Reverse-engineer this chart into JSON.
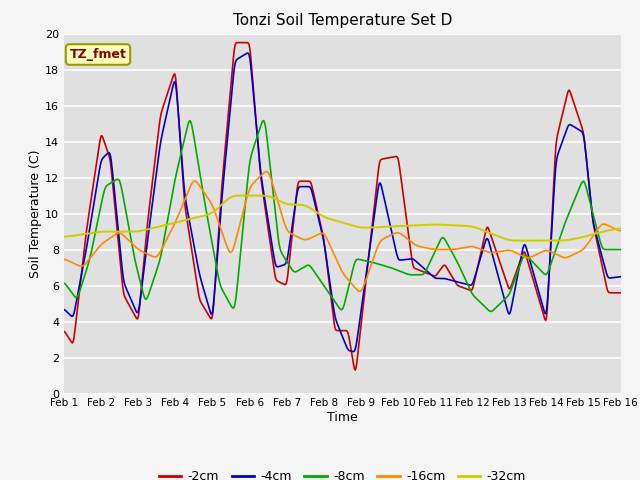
{
  "title": "Tonzi Soil Temperature Set D",
  "xlabel": "Time",
  "ylabel": "Soil Temperature (C)",
  "ylim": [
    0,
    20
  ],
  "xlim": [
    0,
    15
  ],
  "annotation_text": "TZ_fmet",
  "plot_bg_color": "#e0e0e0",
  "fig_bg_color": "#f5f5f5",
  "grid_color": "#cccccc",
  "series": {
    "-2cm": {
      "color": "#cc0000",
      "lw": 1.2
    },
    "-4cm": {
      "color": "#0000cc",
      "lw": 1.2
    },
    "-8cm": {
      "color": "#00aa00",
      "lw": 1.2
    },
    "-16cm": {
      "color": "#ff8800",
      "lw": 1.2
    },
    "-32cm": {
      "color": "#cccc00",
      "lw": 1.4
    }
  },
  "xtick_labels": [
    "Feb 1",
    "Feb 2",
    "Feb 3",
    "Feb 4",
    "Feb 5",
    "Feb 6",
    "Feb 7",
    "Feb 8",
    "Feb 9",
    "Feb 10",
    "Feb 11",
    "Feb 12",
    "Feb 13",
    "Feb 14",
    "Feb 15",
    "Feb 16"
  ],
  "ytick_labels": [
    "0",
    "2",
    "4",
    "6",
    "8",
    "10",
    "12",
    "14",
    "16",
    "18",
    "20"
  ],
  "kt_2": [
    0,
    0.25,
    0.6,
    1.0,
    1.25,
    1.6,
    2.0,
    2.25,
    2.6,
    3.0,
    3.25,
    3.65,
    4.0,
    4.25,
    4.6,
    5.0,
    5.3,
    5.7,
    6.0,
    6.3,
    6.65,
    7.0,
    7.3,
    7.65,
    7.85,
    8.5,
    9.0,
    9.4,
    10.0,
    10.25,
    10.6,
    11.0,
    11.4,
    12.0,
    12.4,
    13.0,
    13.25,
    13.6,
    14.0,
    14.25,
    14.65,
    15.0
  ],
  "kv_2": [
    3.5,
    2.7,
    9.0,
    14.5,
    13.0,
    5.5,
    4.0,
    9.5,
    15.5,
    18.0,
    10.5,
    5.2,
    4.0,
    11.5,
    19.5,
    19.5,
    12.0,
    6.3,
    6.0,
    11.8,
    11.8,
    8.6,
    3.5,
    3.5,
    1.0,
    13.0,
    13.2,
    7.0,
    6.5,
    7.2,
    6.0,
    5.7,
    9.4,
    5.7,
    8.0,
    3.8,
    14.0,
    17.0,
    14.5,
    9.5,
    5.6,
    5.6
  ],
  "kt_4": [
    0,
    0.25,
    0.6,
    1.0,
    1.25,
    1.6,
    2.0,
    2.25,
    2.6,
    3.0,
    3.25,
    3.65,
    4.0,
    4.25,
    4.6,
    5.0,
    5.3,
    5.7,
    6.0,
    6.3,
    6.65,
    7.0,
    7.3,
    7.65,
    7.85,
    8.5,
    9.0,
    9.4,
    10.0,
    10.25,
    10.6,
    11.0,
    11.4,
    12.0,
    12.4,
    13.0,
    13.25,
    13.6,
    14.0,
    14.25,
    14.65,
    15.0
  ],
  "kv_4": [
    4.7,
    4.2,
    8.0,
    13.0,
    13.5,
    6.2,
    4.3,
    8.5,
    14.0,
    17.7,
    11.0,
    6.6,
    4.1,
    10.8,
    18.5,
    19.0,
    12.2,
    7.0,
    7.2,
    11.5,
    11.5,
    8.5,
    4.2,
    2.4,
    2.3,
    12.0,
    7.4,
    7.5,
    6.4,
    6.4,
    6.2,
    6.0,
    8.8,
    4.2,
    8.5,
    4.1,
    13.0,
    15.0,
    14.5,
    9.5,
    6.4,
    6.5
  ],
  "kt_8": [
    0,
    0.35,
    0.7,
    1.1,
    1.5,
    1.9,
    2.2,
    2.6,
    3.0,
    3.4,
    3.8,
    4.2,
    4.6,
    5.0,
    5.4,
    5.8,
    6.2,
    6.6,
    7.0,
    7.5,
    7.85,
    8.3,
    8.8,
    9.3,
    9.7,
    10.2,
    10.6,
    11.0,
    11.5,
    12.0,
    12.4,
    13.0,
    13.5,
    14.0,
    14.5,
    15.0
  ],
  "kv_8": [
    6.2,
    5.2,
    7.5,
    11.5,
    12.0,
    7.5,
    5.0,
    7.5,
    12.0,
    15.5,
    10.5,
    6.0,
    4.5,
    13.0,
    15.5,
    8.0,
    6.7,
    7.2,
    6.0,
    4.5,
    7.5,
    7.3,
    7.0,
    6.6,
    6.6,
    8.8,
    7.3,
    5.5,
    4.5,
    5.5,
    7.8,
    6.5,
    9.5,
    12.0,
    8.0,
    8.0
  ],
  "kt_16": [
    0,
    0.5,
    1.0,
    1.5,
    2.0,
    2.5,
    3.0,
    3.5,
    4.0,
    4.5,
    5.0,
    5.5,
    6.0,
    6.5,
    7.0,
    7.5,
    8.0,
    8.5,
    9.0,
    9.5,
    10.0,
    10.5,
    11.0,
    11.5,
    12.0,
    12.5,
    13.0,
    13.5,
    14.0,
    14.5,
    15.0
  ],
  "kv_16": [
    7.5,
    7.0,
    8.3,
    9.0,
    8.0,
    7.5,
    9.5,
    12.0,
    10.5,
    7.5,
    11.5,
    12.5,
    9.0,
    8.5,
    9.0,
    6.7,
    5.5,
    8.5,
    9.0,
    8.2,
    8.0,
    8.0,
    8.2,
    7.8,
    8.0,
    7.5,
    8.0,
    7.5,
    8.0,
    9.5,
    9.0
  ],
  "kt_32": [
    0,
    1.0,
    2.0,
    3.0,
    4.0,
    4.5,
    5.0,
    5.5,
    6.0,
    6.5,
    7.0,
    7.5,
    8.0,
    9.0,
    10.0,
    11.0,
    12.0,
    13.0,
    13.5,
    14.0,
    14.5,
    15.0
  ],
  "kv_32": [
    8.7,
    9.0,
    9.0,
    9.5,
    10.0,
    11.0,
    11.0,
    11.0,
    10.5,
    10.5,
    9.8,
    9.5,
    9.2,
    9.3,
    9.4,
    9.3,
    8.5,
    8.5,
    8.5,
    8.7,
    9.0,
    9.2
  ]
}
